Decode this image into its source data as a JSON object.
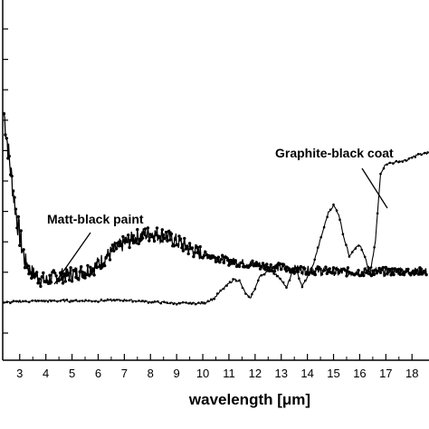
{
  "chart_data": {
    "type": "scatter",
    "xlabel": "wavelength [μm]",
    "ylabel": "",
    "title": "",
    "xlim": [
      2.35,
      18.65
    ],
    "ylim": [
      0,
      1
    ],
    "x_ticks": [
      3,
      4,
      5,
      6,
      7,
      8,
      9,
      10,
      11,
      12,
      13,
      14,
      15,
      16,
      17,
      18
    ],
    "y_tick_count": 12,
    "grid": false,
    "legend": "none",
    "series": [
      {
        "name": "Matt-black paint",
        "x": [
          2.4,
          2.5,
          2.6,
          2.7,
          2.8,
          2.9,
          3.0,
          3.1,
          3.2,
          3.3,
          3.4,
          3.6,
          3.8,
          4.0,
          4.3,
          4.6,
          5.0,
          5.4,
          5.8,
          6.2,
          6.6,
          7.0,
          7.4,
          7.8,
          8.2,
          8.6,
          9.0,
          9.5,
          10.0,
          10.5,
          11.0,
          11.5,
          12.0,
          12.5,
          13.0,
          13.5,
          14.0,
          14.5,
          15.0,
          15.5,
          16.0,
          16.5,
          17.0,
          17.5,
          18.0,
          18.6
        ],
        "y": [
          0.685,
          0.62,
          0.56,
          0.5,
          0.44,
          0.39,
          0.345,
          0.31,
          0.28,
          0.26,
          0.25,
          0.235,
          0.225,
          0.22,
          0.23,
          0.235,
          0.24,
          0.245,
          0.255,
          0.28,
          0.305,
          0.325,
          0.34,
          0.35,
          0.35,
          0.345,
          0.33,
          0.31,
          0.295,
          0.285,
          0.275,
          0.27,
          0.265,
          0.26,
          0.257,
          0.253,
          0.25,
          0.248,
          0.246,
          0.245,
          0.245,
          0.245,
          0.246,
          0.247,
          0.246,
          0.245
        ],
        "color": "#000000"
      },
      {
        "name": "Graphite-black coating",
        "x": [
          2.4,
          3.0,
          4.0,
          5.0,
          6.0,
          7.0,
          8.0,
          9.0,
          10.0,
          10.4,
          10.8,
          11.2,
          11.4,
          11.6,
          11.8,
          12.0,
          12.2,
          12.6,
          13.0,
          13.2,
          13.4,
          13.6,
          13.8,
          14.0,
          14.2,
          14.4,
          14.6,
          14.8,
          15.0,
          15.2,
          15.4,
          15.6,
          15.8,
          16.0,
          16.2,
          16.4,
          16.6,
          16.8,
          17.0,
          17.4,
          17.8,
          18.2,
          18.6
        ],
        "y": [
          0.16,
          0.163,
          0.165,
          0.165,
          0.165,
          0.167,
          0.162,
          0.158,
          0.158,
          0.17,
          0.2,
          0.225,
          0.22,
          0.19,
          0.17,
          0.2,
          0.235,
          0.25,
          0.225,
          0.2,
          0.24,
          0.245,
          0.205,
          0.23,
          0.26,
          0.31,
          0.36,
          0.41,
          0.43,
          0.405,
          0.34,
          0.29,
          0.31,
          0.32,
          0.285,
          0.24,
          0.33,
          0.52,
          0.545,
          0.55,
          0.555,
          0.57,
          0.575
        ],
        "color": "#000000"
      }
    ],
    "annotations": [
      {
        "text": "Matt-black paint",
        "x": 5.4,
        "y": 0.43
      },
      {
        "text": "Graphite-black coat",
        "x": 15.9,
        "y": 0.61
      }
    ]
  }
}
